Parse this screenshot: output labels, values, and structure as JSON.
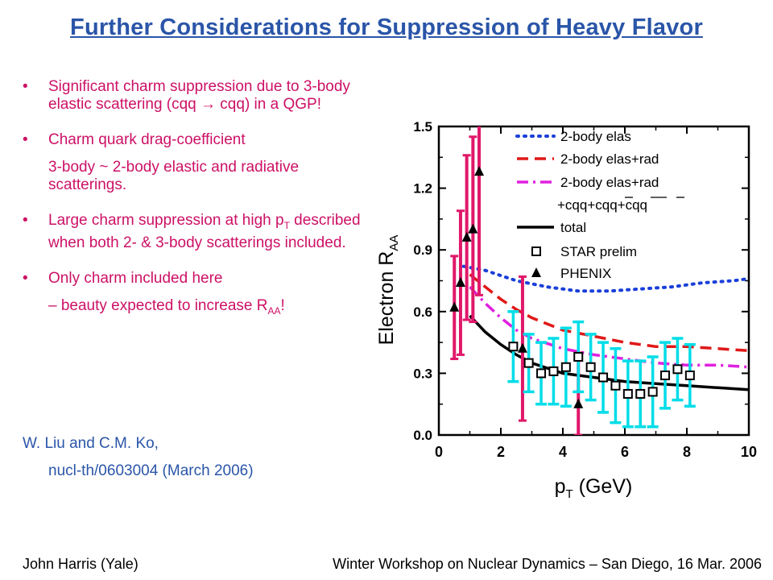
{
  "title": "Further Considerations for Suppression of Heavy Flavor",
  "bullets": [
    {
      "text": "Significant charm suppression due to 3-body elastic scattering (cqq → cqq) in a QGP!"
    },
    {
      "text": "Charm quark drag-coefficient",
      "sub": "3-body ~ 2-body elastic and radiative scatterings."
    },
    {
      "text_pre": "Large charm suppression at high p",
      "text_sub": "T",
      "text_post": " described when both 2- & 3-body scatterings included."
    },
    {
      "text": "Only charm included here",
      "sub_pre": "– beauty expected to increase R",
      "sub_sub": "AA",
      "sub_post": "!"
    }
  ],
  "reference": {
    "line1": "W. Liu and C.M. Ko,",
    "line2": "nucl-th/0603004  (March 2006)"
  },
  "footer": {
    "left": "John Harris (Yale)",
    "right": "Winter Workshop on Nuclear Dynamics – San Diego, 16 Mar. 2006"
  },
  "chart_data": {
    "type": "line",
    "xlabel": "p",
    "xlabel_sub": "T",
    "xlabel_unit": " (GeV)",
    "ylabel": "Electron R",
    "ylabel_sub": "AA",
    "xlim": [
      0,
      10
    ],
    "ylim": [
      0,
      1.5
    ],
    "xticks": [
      "0",
      "2",
      "4",
      "6",
      "8",
      "10"
    ],
    "yticks": [
      "0.0",
      "0.3",
      "0.6",
      "0.9",
      "1.2",
      "1.5"
    ],
    "series": [
      {
        "name": "2-body elas",
        "style": "dotted",
        "color": "#1a3fd8",
        "x": [
          0.8,
          1.5,
          2.5,
          3.5,
          4.5,
          5.5,
          6.5,
          7.5,
          8.5,
          9.5,
          10
        ],
        "y": [
          0.82,
          0.8,
          0.75,
          0.72,
          0.7,
          0.7,
          0.71,
          0.72,
          0.74,
          0.75,
          0.76
        ]
      },
      {
        "name": "2-body elas+rad",
        "style": "dashed",
        "color": "#e01818",
        "x": [
          1.0,
          1.5,
          2.0,
          2.5,
          3.0,
          4.0,
          5.0,
          6.0,
          7.0,
          8.0,
          9.0,
          10
        ],
        "y": [
          0.78,
          0.72,
          0.66,
          0.61,
          0.57,
          0.51,
          0.48,
          0.45,
          0.43,
          0.43,
          0.42,
          0.41
        ]
      },
      {
        "name": "2-body elas+rad",
        "name2": "+cqq+cqq+cqq",
        "style": "dashdot",
        "color": "#e020e0",
        "x": [
          1.0,
          1.5,
          2.0,
          2.5,
          3.0,
          4.0,
          5.0,
          6.0,
          7.0,
          8.0,
          9.0,
          10
        ],
        "y": [
          0.72,
          0.64,
          0.57,
          0.51,
          0.47,
          0.42,
          0.39,
          0.37,
          0.35,
          0.34,
          0.34,
          0.33
        ]
      },
      {
        "name": "total",
        "style": "solid",
        "color": "#000000",
        "x": [
          1.0,
          1.5,
          2.0,
          2.5,
          3.0,
          4.0,
          5.0,
          6.0,
          7.0,
          8.0,
          9.0,
          10
        ],
        "y": [
          0.58,
          0.5,
          0.44,
          0.39,
          0.35,
          0.3,
          0.28,
          0.26,
          0.25,
          0.24,
          0.23,
          0.22
        ]
      }
    ],
    "markers": [
      {
        "name": "STAR prelim",
        "symbol": "open-square",
        "color": "#000000"
      },
      {
        "name": "PHENIX",
        "symbol": "filled-triangle",
        "color": "#000000"
      }
    ],
    "star": {
      "x": [
        2.4,
        2.9,
        3.3,
        3.7,
        4.1,
        4.5,
        4.9,
        5.3,
        5.7,
        6.1,
        6.5,
        6.9,
        7.3,
        7.7,
        8.1
      ],
      "y": [
        0.43,
        0.35,
        0.3,
        0.31,
        0.33,
        0.38,
        0.33,
        0.28,
        0.24,
        0.2,
        0.2,
        0.21,
        0.29,
        0.32,
        0.29
      ],
      "err": [
        0.17,
        0.14,
        0.15,
        0.16,
        0.19,
        0.17,
        0.16,
        0.17,
        0.18,
        0.16,
        0.16,
        0.17,
        0.16,
        0.15,
        0.15
      ],
      "color": "#00dde8"
    },
    "phenix": {
      "x": [
        0.5,
        0.7,
        0.9,
        1.1,
        1.3,
        2.7,
        4.5
      ],
      "y": [
        0.62,
        0.74,
        0.96,
        1.0,
        1.28,
        0.42,
        0.15
      ],
      "err": [
        0.25,
        0.35,
        0.4,
        0.45,
        0.6,
        0.35,
        0.25
      ],
      "color": "#e0186a"
    }
  }
}
